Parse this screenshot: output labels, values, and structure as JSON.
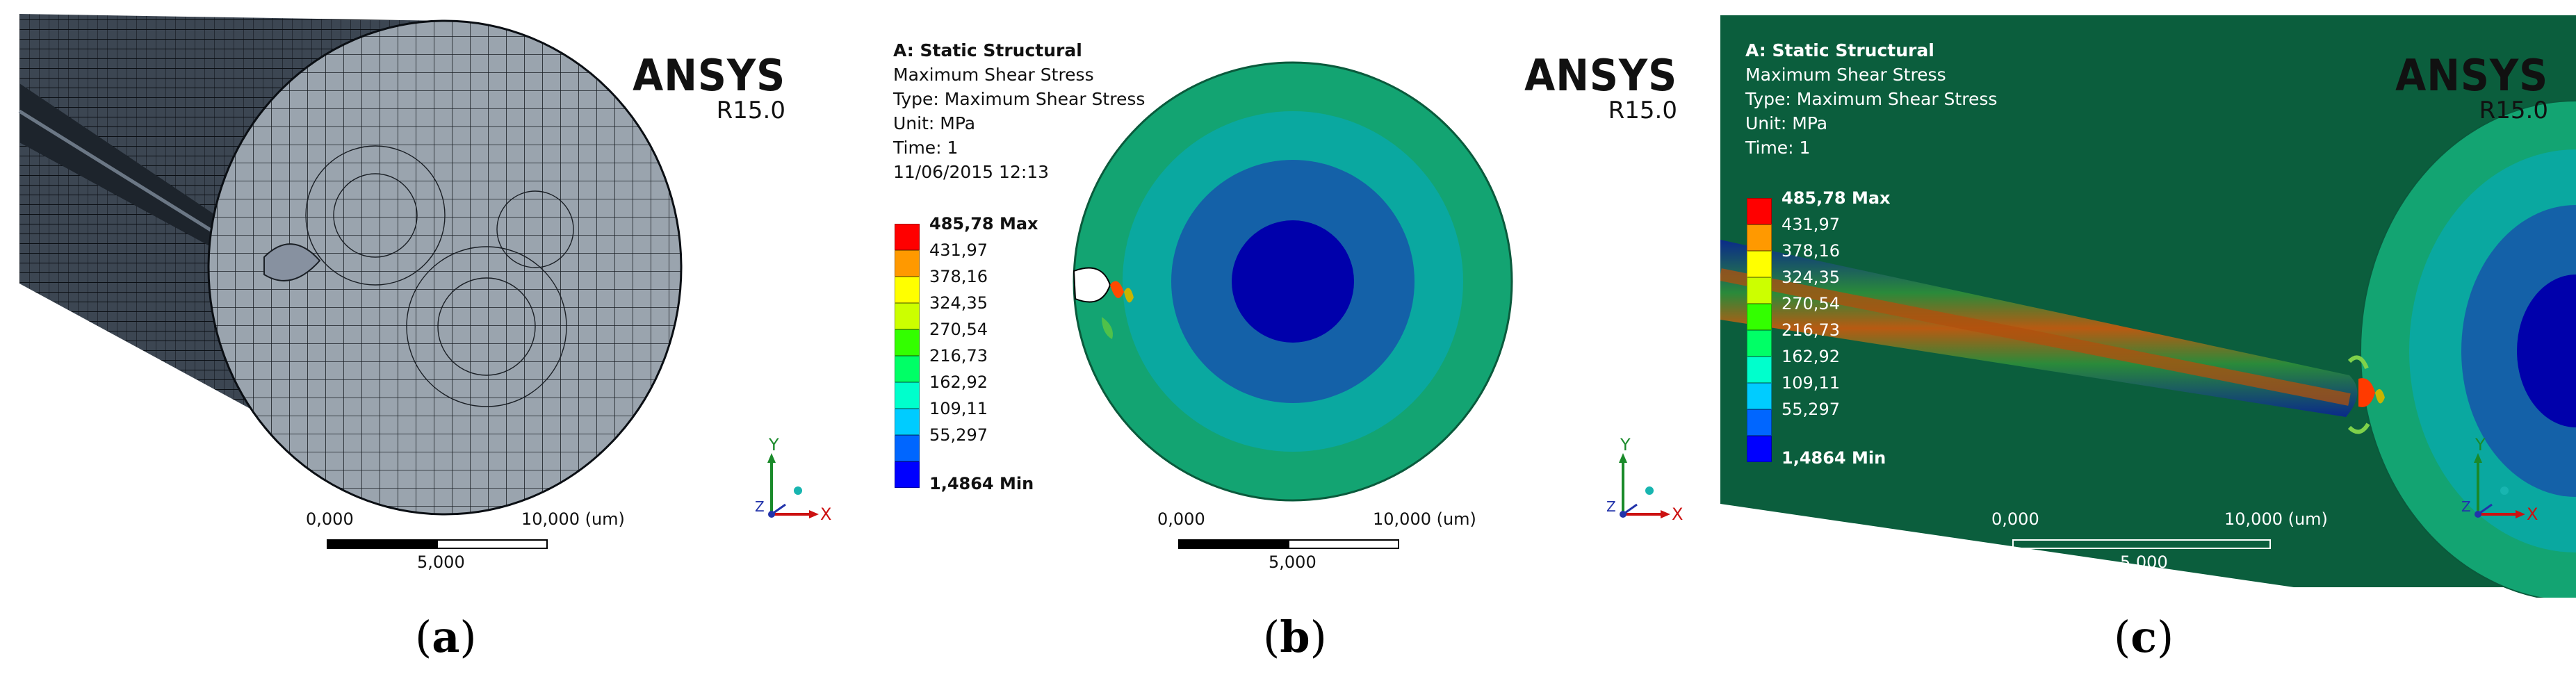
{
  "brand": {
    "name": "ANSYS",
    "version": "R15.0"
  },
  "panels": [
    {
      "id": "a",
      "caption_open": "(",
      "caption_letter": "a",
      "caption_close": ")",
      "scale": {
        "left": "0,000",
        "mid": "5,000",
        "right": "10,000 (um)"
      },
      "axes": {
        "y": "Y",
        "z": "Z",
        "x": "X"
      }
    },
    {
      "id": "b",
      "caption_open": "(",
      "caption_letter": "b",
      "caption_close": ")",
      "info": {
        "title": "A: Static Structural",
        "result": "Maximum Shear Stress",
        "type": "Type: Maximum Shear Stress",
        "unit": "Unit: MPa",
        "time": "Time: 1",
        "date": "11/06/2015 12:13"
      },
      "legend": [
        "485,78 Max",
        "431,97",
        "378,16",
        "324,35",
        "270,54",
        "216,73",
        "162,92",
        "109,11",
        "55,297",
        "1,4864 Min"
      ],
      "scale": {
        "left": "0,000",
        "mid": "5,000",
        "right": "10,000 (um)"
      },
      "axes": {
        "y": "Y",
        "z": "Z",
        "x": "X"
      }
    },
    {
      "id": "c",
      "caption_open": "(",
      "caption_letter": "c",
      "caption_close": ")",
      "info": {
        "title": "A: Static Structural",
        "result": "Maximum Shear Stress",
        "type": "Type: Maximum Shear Stress",
        "unit": "Unit: MPa",
        "time": "Time: 1"
      },
      "legend": [
        "485,78 Max",
        "431,97",
        "378,16",
        "324,35",
        "270,54",
        "216,73",
        "162,92",
        "109,11",
        "55,297",
        "1,4864 Min"
      ],
      "scale": {
        "left": "0,000",
        "mid": "5,000",
        "right": "10,000 (um)"
      },
      "axes": {
        "y": "Y",
        "z": "Z",
        "x": "X"
      }
    }
  ],
  "legend_colors": [
    "#ff0000",
    "#ff9900",
    "#ffff00",
    "#ccff00",
    "#33ff00",
    "#00ff66",
    "#00ffcc",
    "#00ccff",
    "#0066ff",
    "#0000ff"
  ]
}
